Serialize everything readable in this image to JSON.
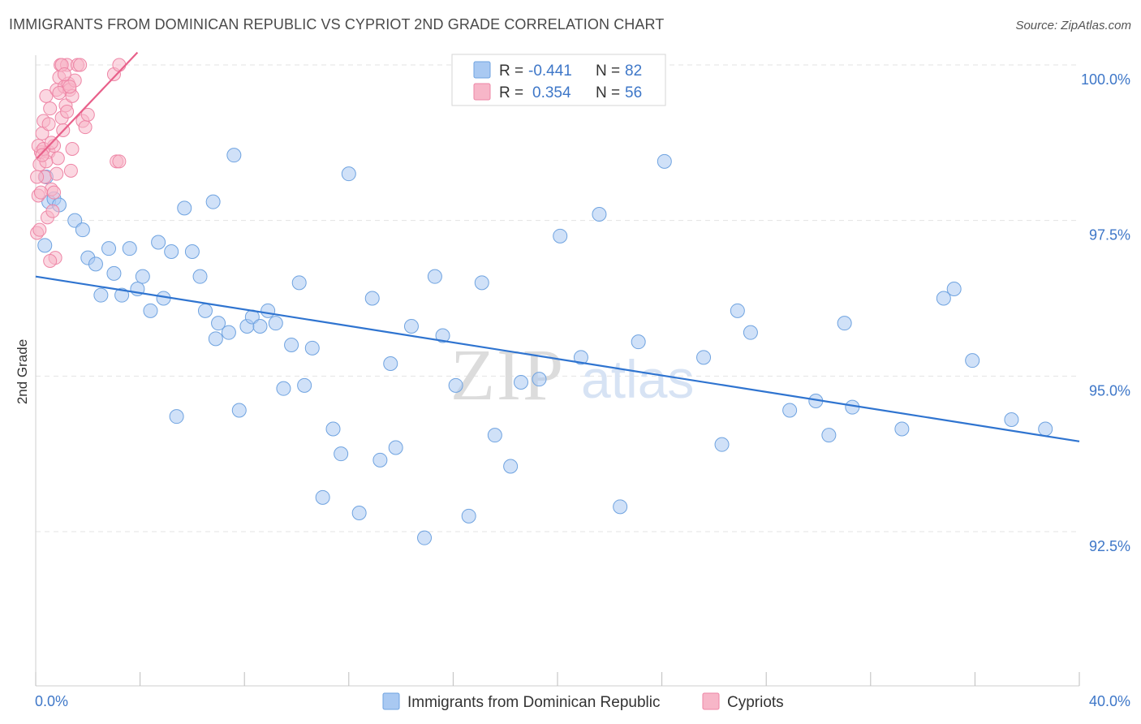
{
  "title": "IMMIGRANTS FROM DOMINICAN REPUBLIC VS CYPRIOT 2ND GRADE CORRELATION CHART",
  "source": "Source: ZipAtlas.com",
  "watermark": {
    "zip": "ZIP",
    "atlas": "atlas"
  },
  "legend_top": {
    "r_label": "R =",
    "n_label": "N =",
    "rows": [
      {
        "r": "-0.441",
        "n": "82",
        "color": "#a9c9f2"
      },
      {
        "r": "0.354",
        "n": "56",
        "color": "#f7b6c8"
      }
    ]
  },
  "legend_bottom": [
    {
      "label": "Immigrants from Dominican Republic",
      "color": "#a9c9f2"
    },
    {
      "label": "Cypriots",
      "color": "#f7b6c8"
    }
  ],
  "colors": {
    "blue_point": "#a9c9f2",
    "blue_stroke": "#6fa3e0",
    "blue_line": "#2f74d0",
    "pink_point": "#f7b6c8",
    "pink_stroke": "#ee86a6",
    "pink_line": "#e8608a",
    "axis_text": "#3e77c8",
    "grid": "#e3e3e3"
  },
  "chart_data": {
    "type": "scatter",
    "title": "IMMIGRANTS FROM DOMINICAN REPUBLIC VS CYPRIOT 2ND GRADE CORRELATION CHART",
    "xlabel": "",
    "ylabel": "2nd Grade",
    "xlim": [
      0,
      40
    ],
    "ylim": [
      90.0,
      100.5
    ],
    "x_tick_labels": [
      "0.0%",
      "40.0%"
    ],
    "y_ticks": [
      92.5,
      95.0,
      97.5,
      100.0
    ],
    "y_tick_labels": [
      "92.5%",
      "95.0%",
      "97.5%",
      "100.0%"
    ],
    "grid": true,
    "legend_placement": "top-center",
    "series": [
      {
        "name": "Immigrants from Dominican Republic",
        "trend": {
          "x": [
            0,
            40
          ],
          "y": [
            96.6,
            93.95
          ]
        },
        "points": [
          [
            0.4,
            98.2
          ],
          [
            0.5,
            97.8
          ],
          [
            0.7,
            97.85
          ],
          [
            0.9,
            97.75
          ],
          [
            1.5,
            97.5
          ],
          [
            1.8,
            97.35
          ],
          [
            2.0,
            96.9
          ],
          [
            2.3,
            96.8
          ],
          [
            2.5,
            96.3
          ],
          [
            2.8,
            97.05
          ],
          [
            3.0,
            96.65
          ],
          [
            3.3,
            96.3
          ],
          [
            3.6,
            97.05
          ],
          [
            3.9,
            96.4
          ],
          [
            4.1,
            96.6
          ],
          [
            4.4,
            96.05
          ],
          [
            4.7,
            97.15
          ],
          [
            4.9,
            96.25
          ],
          [
            5.2,
            97.0
          ],
          [
            5.4,
            94.35
          ],
          [
            5.7,
            97.7
          ],
          [
            6.0,
            97.0
          ],
          [
            6.3,
            96.6
          ],
          [
            6.5,
            96.05
          ],
          [
            6.8,
            97.8
          ],
          [
            7.0,
            95.85
          ],
          [
            7.4,
            95.7
          ],
          [
            7.6,
            98.55
          ],
          [
            7.8,
            94.45
          ],
          [
            8.1,
            95.8
          ],
          [
            8.3,
            95.95
          ],
          [
            8.6,
            95.8
          ],
          [
            8.9,
            96.05
          ],
          [
            9.2,
            95.85
          ],
          [
            9.5,
            94.8
          ],
          [
            9.8,
            95.5
          ],
          [
            10.1,
            96.5
          ],
          [
            10.3,
            94.85
          ],
          [
            10.6,
            95.45
          ],
          [
            11.0,
            93.05
          ],
          [
            11.4,
            94.15
          ],
          [
            11.7,
            93.75
          ],
          [
            12.0,
            98.25
          ],
          [
            12.4,
            92.8
          ],
          [
            12.9,
            96.25
          ],
          [
            13.2,
            93.65
          ],
          [
            13.6,
            95.2
          ],
          [
            13.8,
            93.85
          ],
          [
            14.4,
            95.8
          ],
          [
            14.9,
            92.4
          ],
          [
            15.3,
            96.6
          ],
          [
            15.6,
            95.65
          ],
          [
            16.1,
            94.85
          ],
          [
            16.6,
            92.75
          ],
          [
            17.1,
            96.5
          ],
          [
            17.6,
            94.05
          ],
          [
            18.2,
            93.55
          ],
          [
            18.6,
            94.9
          ],
          [
            19.3,
            94.95
          ],
          [
            20.1,
            97.25
          ],
          [
            20.9,
            95.3
          ],
          [
            21.6,
            97.6
          ],
          [
            22.4,
            92.9
          ],
          [
            23.1,
            95.55
          ],
          [
            24.1,
            98.45
          ],
          [
            25.6,
            95.3
          ],
          [
            26.3,
            93.9
          ],
          [
            26.9,
            96.05
          ],
          [
            27.4,
            95.7
          ],
          [
            28.9,
            94.45
          ],
          [
            29.9,
            94.6
          ],
          [
            30.4,
            94.05
          ],
          [
            31.0,
            95.85
          ],
          [
            31.3,
            94.5
          ],
          [
            33.2,
            94.15
          ],
          [
            34.8,
            96.25
          ],
          [
            35.2,
            96.4
          ],
          [
            35.9,
            95.25
          ],
          [
            37.4,
            94.3
          ],
          [
            38.7,
            94.15
          ],
          [
            0.35,
            97.1
          ],
          [
            6.9,
            95.6
          ]
        ]
      },
      {
        "name": "Cypriots",
        "trend": {
          "x": [
            0.05,
            3.9
          ],
          "y": [
            98.5,
            100.2
          ]
        },
        "points": [
          [
            0.05,
            97.3
          ],
          [
            0.1,
            97.9
          ],
          [
            0.15,
            98.4
          ],
          [
            0.2,
            98.6
          ],
          [
            0.25,
            98.9
          ],
          [
            0.3,
            99.1
          ],
          [
            0.35,
            98.2
          ],
          [
            0.4,
            99.5
          ],
          [
            0.45,
            97.55
          ],
          [
            0.5,
            98.6
          ],
          [
            0.55,
            99.3
          ],
          [
            0.6,
            98.0
          ],
          [
            0.65,
            97.65
          ],
          [
            0.7,
            98.7
          ],
          [
            0.75,
            96.9
          ],
          [
            0.8,
            99.6
          ],
          [
            0.85,
            98.5
          ],
          [
            0.9,
            99.8
          ],
          [
            0.95,
            100.0
          ],
          [
            1.0,
            99.15
          ],
          [
            1.05,
            98.95
          ],
          [
            1.1,
            99.65
          ],
          [
            1.15,
            99.35
          ],
          [
            1.2,
            100.0
          ],
          [
            1.25,
            99.7
          ],
          [
            1.3,
            99.6
          ],
          [
            1.35,
            98.3
          ],
          [
            1.4,
            99.5
          ],
          [
            1.5,
            99.75
          ],
          [
            1.6,
            100.0
          ],
          [
            1.7,
            100.0
          ],
          [
            1.8,
            99.1
          ],
          [
            1.9,
            99.0
          ],
          [
            2.0,
            99.2
          ],
          [
            0.1,
            98.7
          ],
          [
            0.2,
            97.95
          ],
          [
            0.3,
            98.65
          ],
          [
            0.4,
            98.45
          ],
          [
            0.5,
            99.05
          ],
          [
            0.6,
            98.75
          ],
          [
            0.7,
            97.95
          ],
          [
            0.8,
            98.25
          ],
          [
            0.9,
            99.55
          ],
          [
            1.0,
            100.0
          ],
          [
            1.1,
            99.85
          ],
          [
            1.2,
            99.25
          ],
          [
            1.3,
            99.65
          ],
          [
            1.4,
            98.65
          ],
          [
            3.1,
            98.45
          ],
          [
            3.2,
            98.45
          ],
          [
            3.0,
            99.85
          ],
          [
            3.2,
            100.0
          ],
          [
            0.05,
            98.2
          ],
          [
            0.15,
            97.35
          ],
          [
            0.55,
            96.85
          ],
          [
            0.25,
            98.55
          ]
        ]
      }
    ]
  }
}
